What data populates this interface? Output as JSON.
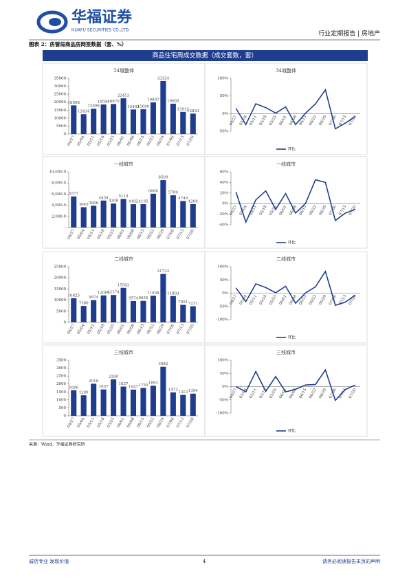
{
  "header": {
    "company": "华福证券",
    "company_en": "HUAFU SECURITIES CO.,LTD.",
    "report": "行业定期报告 | 房地产"
  },
  "caption": "图表 2：房管局商品房网签数据（套、%）",
  "banner": "商品住宅周成交数据（成交套数，套）",
  "chart_data": [
    {
      "type": "bar",
      "title": "34城整体",
      "categories": [
        "04/27",
        "05/04",
        "05/11",
        "05/18",
        "05/25",
        "06/01",
        "06/08",
        "06/15",
        "06/22",
        "06/29",
        "07/06",
        "07/13",
        "07/20"
      ],
      "values": [
        18008,
        12434,
        15898,
        18594,
        18870,
        22453,
        15403,
        15600,
        19897,
        33324,
        19065,
        13912,
        12833
      ],
      "color": "#1f3d8f",
      "ylim": [
        0,
        35000
      ],
      "yticks": [
        0,
        5000,
        10000,
        15000,
        20000,
        25000,
        30000,
        35000
      ]
    },
    {
      "type": "line",
      "title": "34城整体",
      "categories": [
        "04/27",
        "05/04",
        "05/11",
        "05/18",
        "05/25",
        "06/01",
        "06/08",
        "06/15",
        "06/22",
        "06/29",
        "07/06",
        "07/13",
        "07/20"
      ],
      "series": [
        {
          "name": "环比",
          "color": "#1f3d8f",
          "values": [
            15,
            -31,
            28,
            17,
            1.5,
            19,
            -31,
            1.3,
            27.5,
            67.5,
            -43,
            -27,
            -8
          ]
        }
      ],
      "ylim": [
        -50,
        100
      ],
      "yticks": [
        {
          "value": -50,
          "label": "-50%"
        },
        {
          "value": 0,
          "label": "0%"
        },
        {
          "value": 50,
          "label": "50%"
        },
        {
          "value": 100,
          "label": "100%"
        }
      ]
    },
    {
      "type": "bar",
      "title": "一线城市",
      "categories": [
        "04/27",
        "05/04",
        "05/11",
        "05/18",
        "05/25",
        "06/01",
        "06/08",
        "06/15",
        "06/22",
        "06/29",
        "07/06",
        "07/13",
        "07/20"
      ],
      "values": [
        5577,
        3645,
        3906,
        4838,
        4306,
        5114,
        4182,
        4195,
        6066,
        8509,
        5789,
        4749,
        4208
      ],
      "color": "#1f3d8f",
      "ylim": [
        0,
        10000
      ],
      "yticks": [
        {
          "value": 0,
          "label": "-"
        },
        {
          "value": 2000,
          "label": "2,000.0"
        },
        {
          "value": 4000,
          "label": "4,000.0"
        },
        {
          "value": 6000,
          "label": "6,000.0"
        },
        {
          "value": 8000,
          "label": "8,000.0"
        },
        {
          "value": 10000,
          "label": "10,000.0"
        }
      ]
    },
    {
      "type": "line",
      "title": "一线城市",
      "categories": [
        "04/27",
        "05/04",
        "05/11",
        "05/18",
        "05/25",
        "06/01",
        "06/08",
        "06/15",
        "06/22",
        "06/29",
        "07/06",
        "07/13",
        "07/20"
      ],
      "series": [
        {
          "name": "环比",
          "color": "#1f3d8f",
          "values": [
            22,
            -35,
            7,
            24,
            -11,
            19,
            -18,
            0.3,
            45,
            40,
            -32,
            -18,
            -11
          ]
        }
      ],
      "ylim": [
        -40,
        60
      ],
      "yticks": [
        {
          "value": -40,
          "label": "-40%"
        },
        {
          "value": -20,
          "label": "-20%"
        },
        {
          "value": 0,
          "label": "0%"
        },
        {
          "value": 20,
          "label": "20%"
        },
        {
          "value": 40,
          "label": "40%"
        },
        {
          "value": 60,
          "label": "60%"
        }
      ]
    },
    {
      "type": "bar",
      "title": "二线城市",
      "categories": [
        "04/27",
        "05/04",
        "05/11",
        "05/18",
        "05/25",
        "06/01",
        "06/08",
        "06/15",
        "06/22",
        "06/29",
        "07/06",
        "07/13",
        "07/20"
      ],
      "values": [
        10825,
        7380,
        9974,
        12089,
        12274,
        15502,
        9574,
        9655,
        11938,
        21733,
        11803,
        7851,
        7231
      ],
      "color": "#1f3d8f",
      "ylim": [
        0,
        25000
      ],
      "yticks": [
        0,
        5000,
        10000,
        15000,
        20000,
        25000
      ]
    },
    {
      "type": "line",
      "title": "二线城市",
      "categories": [
        "04/27",
        "05/04",
        "05/11",
        "05/18",
        "05/25",
        "06/01",
        "06/08",
        "06/15",
        "06/22",
        "06/29",
        "07/06",
        "07/13",
        "07/20"
      ],
      "series": [
        {
          "name": "环比",
          "color": "#1f3d8f",
          "values": [
            20,
            -32,
            35,
            21,
            1.5,
            26,
            -38,
            0.8,
            24,
            82,
            -46,
            -34,
            -8
          ]
        }
      ],
      "ylim": [
        -100,
        100
      ],
      "yticks": [
        {
          "value": -100,
          "label": "-100%"
        },
        {
          "value": -50,
          "label": "-50%"
        },
        {
          "value": 0,
          "label": "0%"
        },
        {
          "value": 50,
          "label": "50%"
        },
        {
          "value": 100,
          "label": "100%"
        }
      ]
    },
    {
      "type": "bar",
      "title": "三线城市",
      "categories": [
        "04/27",
        "05/04",
        "05/11",
        "05/18",
        "05/25",
        "06/01",
        "06/08",
        "06/15",
        "06/22",
        "06/29",
        "07/06",
        "07/13",
        "07/20"
      ],
      "values": [
        1606,
        1289,
        2018,
        1657,
        2290,
        1837,
        1647,
        1750,
        1893,
        3082,
        1473,
        1313,
        1394
      ],
      "color": "#1f3d8f",
      "ylim": [
        0,
        3500
      ],
      "yticks": [
        0,
        500,
        1000,
        1500,
        2000,
        2500,
        3000,
        3500
      ]
    },
    {
      "type": "line",
      "title": "三线城市",
      "categories": [
        "04/27",
        "05/04",
        "05/11",
        "05/18",
        "05/25",
        "06/01",
        "06/08",
        "06/15",
        "06/22",
        "06/29",
        "07/06",
        "07/13",
        "07/20"
      ],
      "series": [
        {
          "name": "环比",
          "color": "#1f3d8f",
          "values": [
            0,
            -20,
            57,
            -18,
            38,
            -20,
            -10,
            6,
            8,
            63,
            -52,
            -11,
            6
          ]
        }
      ],
      "ylim": [
        -100,
        100
      ],
      "yticks": [
        {
          "value": -100,
          "label": "-100%"
        },
        {
          "value": -50,
          "label": "-50%"
        },
        {
          "value": 0,
          "label": "0%"
        },
        {
          "value": 50,
          "label": "50%"
        },
        {
          "value": 100,
          "label": "100%"
        }
      ]
    }
  ],
  "source": "来源：Wind、华福证券研究所",
  "footer": {
    "left": "诚信专业  发现价值",
    "page": "4",
    "right": "请务必阅读报告末页的声明"
  }
}
